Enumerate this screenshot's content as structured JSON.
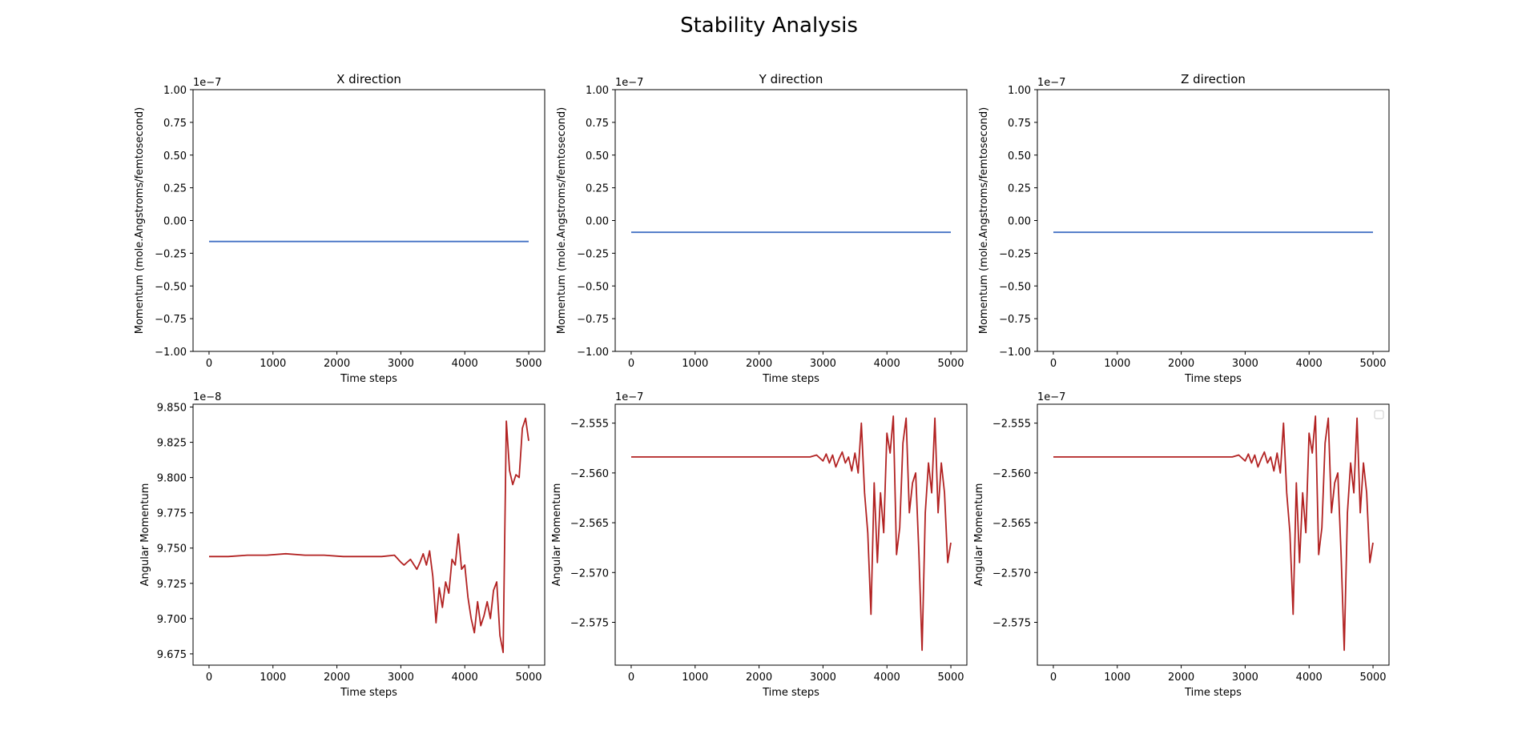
{
  "figure": {
    "title": "Stability Analysis",
    "momentum_color": "#4472c4",
    "angular_color": "#b22222"
  },
  "chart_data": [
    {
      "type": "line",
      "title": "X direction",
      "xlabel": "Time steps",
      "ylabel": "Momentum (mole.Angstroms/femtosecond)",
      "offset_label": "1e−7",
      "xlim": [
        -250,
        5250
      ],
      "ylim": [
        -1.0,
        1.0
      ],
      "x_ticks": [
        0,
        1000,
        2000,
        3000,
        4000,
        5000
      ],
      "x_tick_labels": [
        "0",
        "1000",
        "2000",
        "3000",
        "4000",
        "5000"
      ],
      "y_ticks": [
        -1.0,
        -0.75,
        -0.5,
        -0.25,
        0.0,
        0.25,
        0.5,
        0.75,
        1.0
      ],
      "y_tick_labels": [
        "−1.00",
        "−0.75",
        "−0.50",
        "−0.25",
        "0.00",
        "0.25",
        "0.50",
        "0.75",
        "1.00"
      ],
      "series": [
        {
          "x": [
            0,
            5000
          ],
          "values": [
            -0.16,
            -0.16
          ]
        }
      ]
    },
    {
      "type": "line",
      "title": "Y direction",
      "xlabel": "Time steps",
      "ylabel": "Momentum (mole.Angstroms/femtosecond)",
      "offset_label": "1e−7",
      "xlim": [
        -250,
        5250
      ],
      "ylim": [
        -1.0,
        1.0
      ],
      "x_ticks": [
        0,
        1000,
        2000,
        3000,
        4000,
        5000
      ],
      "x_tick_labels": [
        "0",
        "1000",
        "2000",
        "3000",
        "4000",
        "5000"
      ],
      "y_ticks": [
        -1.0,
        -0.75,
        -0.5,
        -0.25,
        0.0,
        0.25,
        0.5,
        0.75,
        1.0
      ],
      "y_tick_labels": [
        "−1.00",
        "−0.75",
        "−0.50",
        "−0.25",
        "0.00",
        "0.25",
        "0.50",
        "0.75",
        "1.00"
      ],
      "series": [
        {
          "x": [
            0,
            5000
          ],
          "values": [
            -0.09,
            -0.09
          ]
        }
      ]
    },
    {
      "type": "line",
      "title": "Z direction",
      "xlabel": "Time steps",
      "ylabel": "Momentum (mole.Angstroms/femtosecond)",
      "offset_label": "1e−7",
      "xlim": [
        -250,
        5250
      ],
      "ylim": [
        -1.0,
        1.0
      ],
      "x_ticks": [
        0,
        1000,
        2000,
        3000,
        4000,
        5000
      ],
      "x_tick_labels": [
        "0",
        "1000",
        "2000",
        "3000",
        "4000",
        "5000"
      ],
      "y_ticks": [
        -1.0,
        -0.75,
        -0.5,
        -0.25,
        0.0,
        0.25,
        0.5,
        0.75,
        1.0
      ],
      "y_tick_labels": [
        "−1.00",
        "−0.75",
        "−0.50",
        "−0.25",
        "0.00",
        "0.25",
        "0.50",
        "0.75",
        "1.00"
      ],
      "series": [
        {
          "x": [
            0,
            5000
          ],
          "values": [
            -0.09,
            -0.09
          ]
        }
      ]
    },
    {
      "type": "line",
      "title": "",
      "xlabel": "Time steps",
      "ylabel": "Angular Momentum",
      "offset_label": "1e−8",
      "xlim": [
        -250,
        5250
      ],
      "ylim": [
        9.667,
        9.852
      ],
      "x_ticks": [
        0,
        1000,
        2000,
        3000,
        4000,
        5000
      ],
      "x_tick_labels": [
        "0",
        "1000",
        "2000",
        "3000",
        "4000",
        "5000"
      ],
      "y_ticks": [
        9.675,
        9.7,
        9.725,
        9.75,
        9.775,
        9.8,
        9.825,
        9.85
      ],
      "y_tick_labels": [
        "9.675",
        "9.700",
        "9.725",
        "9.750",
        "9.775",
        "9.800",
        "9.825",
        "9.850"
      ],
      "series": [
        {
          "x": [
            0,
            300,
            600,
            900,
            1200,
            1500,
            1800,
            2100,
            2400,
            2700,
            2900,
            3000,
            3050,
            3150,
            3250,
            3300,
            3350,
            3400,
            3450,
            3500,
            3550,
            3600,
            3650,
            3700,
            3750,
            3800,
            3850,
            3900,
            3950,
            4000,
            4050,
            4100,
            4150,
            4200,
            4250,
            4300,
            4350,
            4400,
            4450,
            4500,
            4550,
            4600,
            4650,
            4700,
            4750,
            4800,
            4850,
            4900,
            4950,
            5000
          ],
          "values": [
            9.744,
            9.744,
            9.745,
            9.745,
            9.746,
            9.745,
            9.745,
            9.744,
            9.744,
            9.744,
            9.745,
            9.74,
            9.738,
            9.742,
            9.735,
            9.74,
            9.746,
            9.738,
            9.748,
            9.73,
            9.697,
            9.722,
            9.708,
            9.726,
            9.718,
            9.742,
            9.738,
            9.76,
            9.735,
            9.738,
            9.715,
            9.7,
            9.69,
            9.712,
            9.695,
            9.702,
            9.712,
            9.7,
            9.72,
            9.726,
            9.688,
            9.676,
            9.84,
            9.805,
            9.795,
            9.802,
            9.8,
            9.835,
            9.842,
            9.826
          ]
        }
      ]
    },
    {
      "type": "line",
      "title": "",
      "xlabel": "Time steps",
      "ylabel": "Angular Momentum",
      "offset_label": "1e−7",
      "xlim": [
        -250,
        5250
      ],
      "ylim": [
        -2.5793,
        -2.5531
      ],
      "x_ticks": [
        0,
        1000,
        2000,
        3000,
        4000,
        5000
      ],
      "x_tick_labels": [
        "0",
        "1000",
        "2000",
        "3000",
        "4000",
        "5000"
      ],
      "y_ticks": [
        -2.575,
        -2.57,
        -2.565,
        -2.56,
        -2.555
      ],
      "y_tick_labels": [
        "−2.575",
        "−2.570",
        "−2.565",
        "−2.560",
        "−2.555"
      ],
      "series": [
        {
          "x": [
            0,
            500,
            1000,
            1500,
            2000,
            2500,
            2800,
            2900,
            3000,
            3050,
            3100,
            3150,
            3200,
            3250,
            3300,
            3350,
            3400,
            3450,
            3500,
            3550,
            3600,
            3650,
            3700,
            3750,
            3800,
            3850,
            3900,
            3950,
            4000,
            4050,
            4100,
            4150,
            4200,
            4250,
            4300,
            4350,
            4400,
            4450,
            4500,
            4550,
            4600,
            4650,
            4700,
            4750,
            4800,
            4850,
            4900,
            4950,
            5000
          ],
          "values": [
            -2.5584,
            -2.5584,
            -2.5584,
            -2.5584,
            -2.5584,
            -2.5584,
            -2.5584,
            -2.5582,
            -2.5588,
            -2.5581,
            -2.559,
            -2.5582,
            -2.5594,
            -2.5586,
            -2.5579,
            -2.559,
            -2.5584,
            -2.5598,
            -2.558,
            -2.56,
            -2.555,
            -2.562,
            -2.566,
            -2.5742,
            -2.561,
            -2.569,
            -2.562,
            -2.566,
            -2.556,
            -2.558,
            -2.5543,
            -2.5682,
            -2.5655,
            -2.557,
            -2.5545,
            -2.564,
            -2.561,
            -2.56,
            -2.568,
            -2.5778,
            -2.564,
            -2.559,
            -2.562,
            -2.5545,
            -2.564,
            -2.559,
            -2.562,
            -2.569,
            -2.567
          ]
        }
      ]
    },
    {
      "type": "line",
      "title": "",
      "xlabel": "Time steps",
      "ylabel": "Angular Momentum",
      "offset_label": "1e−7",
      "xlim": [
        -250,
        5250
      ],
      "ylim": [
        -2.5793,
        -2.5531
      ],
      "x_ticks": [
        0,
        1000,
        2000,
        3000,
        4000,
        5000
      ],
      "x_tick_labels": [
        "0",
        "1000",
        "2000",
        "3000",
        "4000",
        "5000"
      ],
      "y_ticks": [
        -2.575,
        -2.57,
        -2.565,
        -2.56,
        -2.555
      ],
      "y_tick_labels": [
        "−2.575",
        "−2.570",
        "−2.565",
        "−2.560",
        "−2.555"
      ],
      "legend": "top-right (empty)",
      "series": [
        {
          "x": [
            0,
            500,
            1000,
            1500,
            2000,
            2500,
            2800,
            2900,
            3000,
            3050,
            3100,
            3150,
            3200,
            3250,
            3300,
            3350,
            3400,
            3450,
            3500,
            3550,
            3600,
            3650,
            3700,
            3750,
            3800,
            3850,
            3900,
            3950,
            4000,
            4050,
            4100,
            4150,
            4200,
            4250,
            4300,
            4350,
            4400,
            4450,
            4500,
            4550,
            4600,
            4650,
            4700,
            4750,
            4800,
            4850,
            4900,
            4950,
            5000
          ],
          "values": [
            -2.5584,
            -2.5584,
            -2.5584,
            -2.5584,
            -2.5584,
            -2.5584,
            -2.5584,
            -2.5582,
            -2.5588,
            -2.5581,
            -2.559,
            -2.5582,
            -2.5594,
            -2.5586,
            -2.5579,
            -2.559,
            -2.5584,
            -2.5598,
            -2.558,
            -2.56,
            -2.555,
            -2.562,
            -2.566,
            -2.5742,
            -2.561,
            -2.569,
            -2.562,
            -2.566,
            -2.556,
            -2.558,
            -2.5543,
            -2.5682,
            -2.5655,
            -2.557,
            -2.5545,
            -2.564,
            -2.561,
            -2.56,
            -2.568,
            -2.5778,
            -2.564,
            -2.559,
            -2.562,
            -2.5545,
            -2.564,
            -2.559,
            -2.562,
            -2.569,
            -2.567
          ]
        }
      ]
    }
  ]
}
